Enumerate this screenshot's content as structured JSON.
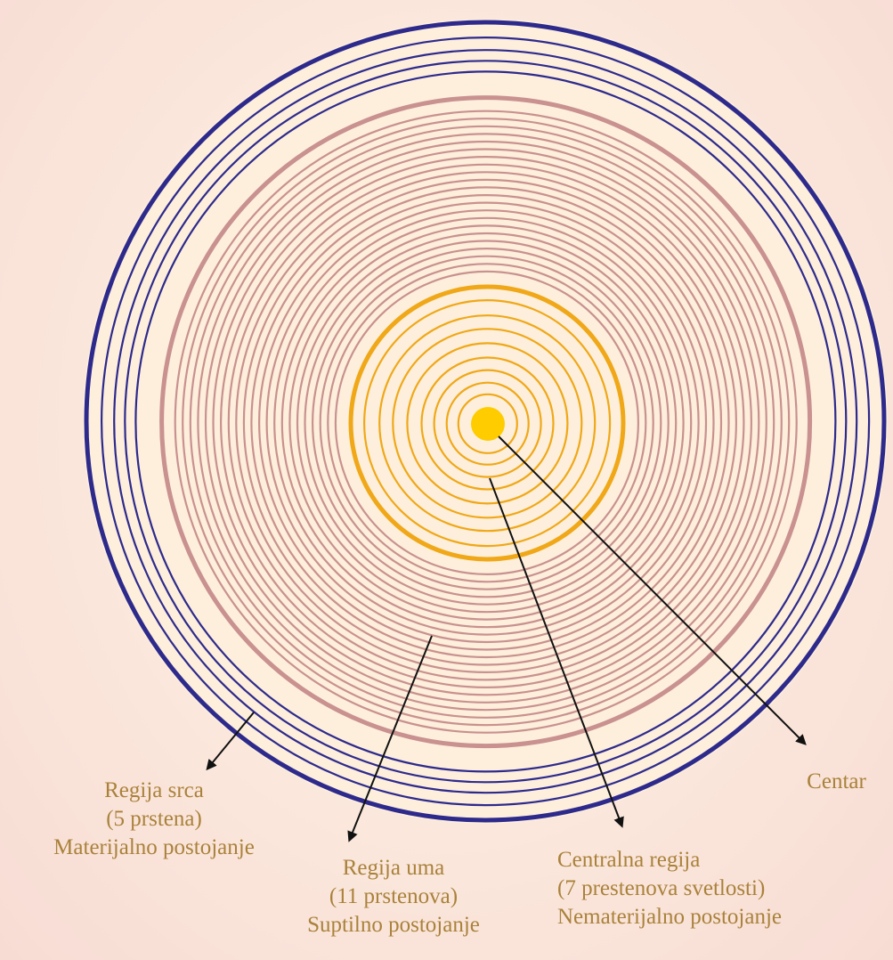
{
  "colors": {
    "heart_rings": "#2e2a8c",
    "mind_rings": "#c9918f",
    "central_rings": "#f0a818",
    "center_dot": "#ffcc00",
    "label_text": "#a9823a",
    "disc_fill": "#fdefdc",
    "arrow": "#111111"
  },
  "regions": {
    "heart": {
      "title": "Regija srca",
      "count": "(5 prstena)",
      "desc": "Materijalno postojanje",
      "ring_count": 5
    },
    "mind": {
      "title": "Regija uma",
      "count": "(11 prstenova)",
      "desc": "Suptilno postojanje",
      "ring_count": 11
    },
    "central": {
      "title": "Centralna regija",
      "count": "(7 prestenova svetlosti)",
      "desc": "Nematerijalno postojanje",
      "ring_count": 7
    },
    "center": {
      "title": "Centar"
    }
  }
}
